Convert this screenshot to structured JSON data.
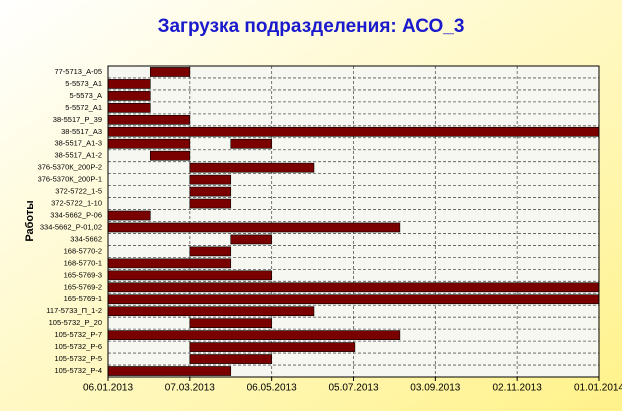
{
  "chart_data": {
    "type": "gantt",
    "title": "Загрузка подразделения: АСО_3",
    "y_label": "Работы",
    "color": "#7a0000",
    "grid": true,
    "xlim": [
      "2013-01-06",
      "2014-01-01"
    ],
    "xticks": [
      {
        "value": "2013-01-06",
        "label": "06.01.2013"
      },
      {
        "value": "2013-03-07",
        "label": "07.03.2013"
      },
      {
        "value": "2013-05-06",
        "label": "06.05.2013"
      },
      {
        "value": "2013-07-05",
        "label": "05.07.2013"
      },
      {
        "value": "2013-09-03",
        "label": "03.09.2013"
      },
      {
        "value": "2013-11-02",
        "label": "02.11.2013"
      },
      {
        "value": "2014-01-01",
        "label": "01.01.2014"
      }
    ],
    "tasks": [
      {
        "name": "77-5713_А-05",
        "periods": [
          {
            "start": "2013-02-06",
            "end": "2013-03-07"
          }
        ]
      },
      {
        "name": "5-5573_А1",
        "periods": [
          {
            "start": "2013-01-06",
            "end": "2013-02-06"
          }
        ]
      },
      {
        "name": "5-5573_А",
        "periods": [
          {
            "start": "2013-01-06",
            "end": "2013-02-06"
          }
        ]
      },
      {
        "name": "5-5572_А1",
        "periods": [
          {
            "start": "2013-01-06",
            "end": "2013-02-06"
          }
        ]
      },
      {
        "name": "38-5517_Р_39",
        "periods": [
          {
            "start": "2013-01-06",
            "end": "2013-03-07"
          }
        ]
      },
      {
        "name": "38-5517_А3",
        "periods": [
          {
            "start": "2013-01-06",
            "end": "2014-01-01"
          }
        ]
      },
      {
        "name": "38-5517_А1-3",
        "periods": [
          {
            "start": "2013-01-06",
            "end": "2013-03-07"
          },
          {
            "start": "2013-04-06",
            "end": "2013-05-06"
          }
        ]
      },
      {
        "name": "38-5517_А1-2",
        "periods": [
          {
            "start": "2013-02-06",
            "end": "2013-03-07"
          }
        ]
      },
      {
        "name": "376-5370К_200Р-2",
        "periods": [
          {
            "start": "2013-03-07",
            "end": "2013-06-06"
          }
        ]
      },
      {
        "name": "376-5370К_200Р-1",
        "periods": [
          {
            "start": "2013-03-07",
            "end": "2013-04-06"
          }
        ]
      },
      {
        "name": "372-5722_1-5",
        "periods": [
          {
            "start": "2013-03-07",
            "end": "2013-04-06"
          }
        ]
      },
      {
        "name": "372-5722_1-10",
        "periods": [
          {
            "start": "2013-03-07",
            "end": "2013-04-06"
          }
        ]
      },
      {
        "name": "334-5662_Р-06",
        "periods": [
          {
            "start": "2013-01-06",
            "end": "2013-02-06"
          }
        ]
      },
      {
        "name": "334-5662_Р-01,02",
        "periods": [
          {
            "start": "2013-01-06",
            "end": "2013-08-08"
          }
        ]
      },
      {
        "name": "334-5662",
        "periods": [
          {
            "start": "2013-04-06",
            "end": "2013-05-06"
          }
        ]
      },
      {
        "name": "168-5770-2",
        "periods": [
          {
            "start": "2013-03-07",
            "end": "2013-04-06"
          }
        ]
      },
      {
        "name": "168-5770-1",
        "periods": [
          {
            "start": "2013-01-06",
            "end": "2013-04-06"
          }
        ]
      },
      {
        "name": "165-5769-3",
        "periods": [
          {
            "start": "2013-01-06",
            "end": "2013-05-06"
          }
        ]
      },
      {
        "name": "165-5769-2",
        "periods": [
          {
            "start": "2013-01-06",
            "end": "2014-01-01"
          }
        ]
      },
      {
        "name": "165-5769-1",
        "periods": [
          {
            "start": "2013-01-06",
            "end": "2014-01-01"
          }
        ]
      },
      {
        "name": "117-5733_П_1-2",
        "periods": [
          {
            "start": "2013-01-06",
            "end": "2013-06-06"
          }
        ]
      },
      {
        "name": "105-5732_Р_20",
        "periods": [
          {
            "start": "2013-03-07",
            "end": "2013-05-06"
          }
        ]
      },
      {
        "name": "105-5732_Р-7",
        "periods": [
          {
            "start": "2013-01-06",
            "end": "2013-08-08"
          }
        ]
      },
      {
        "name": "105-5732_Р-6",
        "periods": [
          {
            "start": "2013-03-07",
            "end": "2013-07-06"
          }
        ]
      },
      {
        "name": "105-5732_Р-5",
        "periods": [
          {
            "start": "2013-03-07",
            "end": "2013-05-06"
          }
        ]
      },
      {
        "name": "105-5732_Р-4",
        "periods": [
          {
            "start": "2013-01-06",
            "end": "2013-04-06"
          }
        ]
      }
    ]
  }
}
